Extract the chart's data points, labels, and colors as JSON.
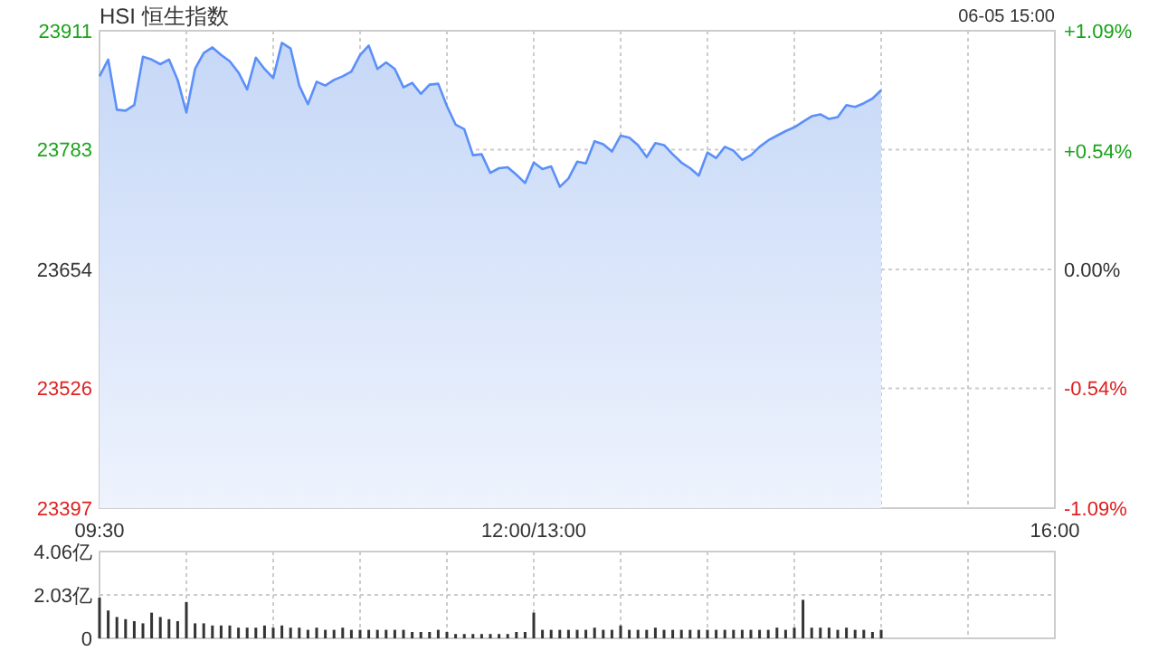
{
  "chart_data": [
    {
      "type": "area",
      "title": "HSI 恒生指数",
      "annotations": [
        "06-05 15:00"
      ],
      "color": "#5b8ff9",
      "grid": true,
      "ylim": [
        23397,
        23911
      ],
      "y2lim": [
        -1.09,
        1.09
      ],
      "categories": [
        "09:30",
        null,
        null,
        null,
        null,
        null,
        null,
        null,
        null,
        null,
        null,
        null,
        null,
        null,
        null,
        null,
        null,
        null,
        null,
        null,
        null,
        null,
        null,
        null,
        null,
        null,
        null,
        null,
        null,
        null,
        null,
        null,
        null,
        null,
        null,
        null,
        null,
        null,
        null,
        null,
        null,
        null,
        null,
        null,
        null,
        null,
        null,
        null,
        null,
        null,
        "12:00/13:00",
        null,
        null,
        null,
        null,
        null,
        null,
        null,
        null,
        null,
        null,
        null,
        null,
        null,
        null,
        null,
        null,
        null,
        null,
        null,
        null,
        null,
        null,
        null,
        null,
        null,
        null,
        null,
        null,
        null,
        null,
        null,
        null,
        null,
        null,
        null,
        null,
        null,
        null,
        null,
        null,
        null,
        null,
        null,
        null,
        null,
        null,
        null,
        null,
        null,
        null,
        null,
        null,
        null,
        null,
        null,
        null,
        null,
        null,
        null,
        "16:00"
      ],
      "yticks": [
        23397,
        23526,
        23654,
        23783,
        23911
      ],
      "y2ticks": [
        {
          "value": -1.09,
          "label": "-1.09%"
        },
        {
          "value": -0.54,
          "label": "-0.54%"
        },
        {
          "value": 0,
          "label": "0.00%"
        },
        {
          "value": 0.54,
          "label": "+0.54%"
        },
        {
          "value": 1.09,
          "label": "+1.09%"
        }
      ],
      "values": [
        23862,
        23880,
        23826,
        23825,
        23831,
        23883,
        23880,
        23875,
        23880,
        23858,
        23823,
        23870,
        23887,
        23893,
        23885,
        23878,
        23866,
        23848,
        23882,
        23870,
        23860,
        23898,
        23892,
        23852,
        23832,
        23856,
        23852,
        23858,
        23862,
        23867,
        23885,
        23895,
        23870,
        23877,
        23870,
        23850,
        23855,
        23843,
        23853,
        23854,
        23830,
        23810,
        23805,
        23777,
        23778,
        23758,
        23763,
        23764,
        23756,
        23747,
        23769,
        23762,
        23765,
        23743,
        23752,
        23770,
        23768,
        23792,
        23789,
        23781,
        23798,
        23796,
        23788,
        23775,
        23790,
        23788,
        23778,
        23769,
        23763,
        23755,
        23780,
        23774,
        23786,
        23782,
        23772,
        23777,
        23786,
        23793,
        23798,
        23803,
        23807,
        23813,
        23819,
        23821,
        23816,
        23818,
        23831,
        23829,
        23833,
        23838,
        23847,
        null,
        null,
        null,
        null,
        null,
        null,
        null,
        null,
        null,
        null,
        null,
        null,
        null,
        null,
        null,
        null,
        null,
        null,
        null,
        null
      ]
    },
    {
      "type": "bar",
      "color": "#333333",
      "grid": true,
      "tick_labels": "y",
      "ylim": [
        0,
        4.06
      ],
      "categories": [
        null,
        null,
        null,
        null,
        null,
        null,
        null,
        null,
        null,
        null,
        null,
        null,
        null,
        null,
        null,
        null,
        null,
        null,
        null,
        null,
        null,
        null,
        null,
        null,
        null,
        null,
        null,
        null,
        null,
        null,
        null,
        null,
        null,
        null,
        null,
        null,
        null,
        null,
        null,
        null,
        null,
        null,
        null,
        null,
        null,
        null,
        null,
        null,
        null,
        null,
        null,
        null,
        null,
        null,
        null,
        null,
        null,
        null,
        null,
        null,
        null,
        null,
        null,
        null,
        null,
        null,
        null,
        null,
        null,
        null,
        null,
        null,
        null,
        null,
        null,
        null,
        null,
        null,
        null,
        null,
        null,
        null,
        null,
        null,
        null,
        null,
        null,
        null,
        null,
        null,
        null,
        null,
        null,
        null,
        null,
        null,
        null,
        null,
        null,
        null,
        null,
        null,
        null,
        null,
        null,
        null,
        null,
        null,
        null,
        null,
        null
      ],
      "yticks": [
        0,
        {
          "value": 2.03,
          "label": "2.03亿"
        },
        {
          "value": 4.06,
          "label": "4.06亿"
        }
      ],
      "values": [
        1.9,
        1.3,
        1.0,
        0.9,
        0.8,
        0.7,
        1.2,
        1.0,
        0.9,
        0.8,
        1.7,
        0.7,
        0.7,
        0.6,
        0.6,
        0.6,
        0.5,
        0.5,
        0.5,
        0.6,
        0.5,
        0.6,
        0.5,
        0.5,
        0.4,
        0.5,
        0.4,
        0.4,
        0.5,
        0.4,
        0.4,
        0.4,
        0.4,
        0.4,
        0.4,
        0.4,
        0.3,
        0.3,
        0.3,
        0.4,
        0.3,
        0.2,
        0.2,
        0.2,
        0.2,
        0.2,
        0.2,
        0.2,
        0.3,
        0.3,
        1.2,
        0.4,
        0.4,
        0.4,
        0.4,
        0.4,
        0.4,
        0.5,
        0.4,
        0.4,
        0.6,
        0.4,
        0.4,
        0.4,
        0.5,
        0.4,
        0.4,
        0.4,
        0.4,
        0.4,
        0.4,
        0.4,
        0.4,
        0.4,
        0.4,
        0.4,
        0.4,
        0.4,
        0.5,
        0.4,
        0.5,
        1.8,
        0.5,
        0.5,
        0.5,
        0.4,
        0.5,
        0.4,
        0.4,
        0.3,
        0.4,
        null,
        null,
        null,
        null,
        null,
        null,
        null,
        null,
        null,
        null,
        null,
        null,
        null,
        null,
        null,
        null,
        null,
        null,
        null,
        null
      ]
    }
  ]
}
